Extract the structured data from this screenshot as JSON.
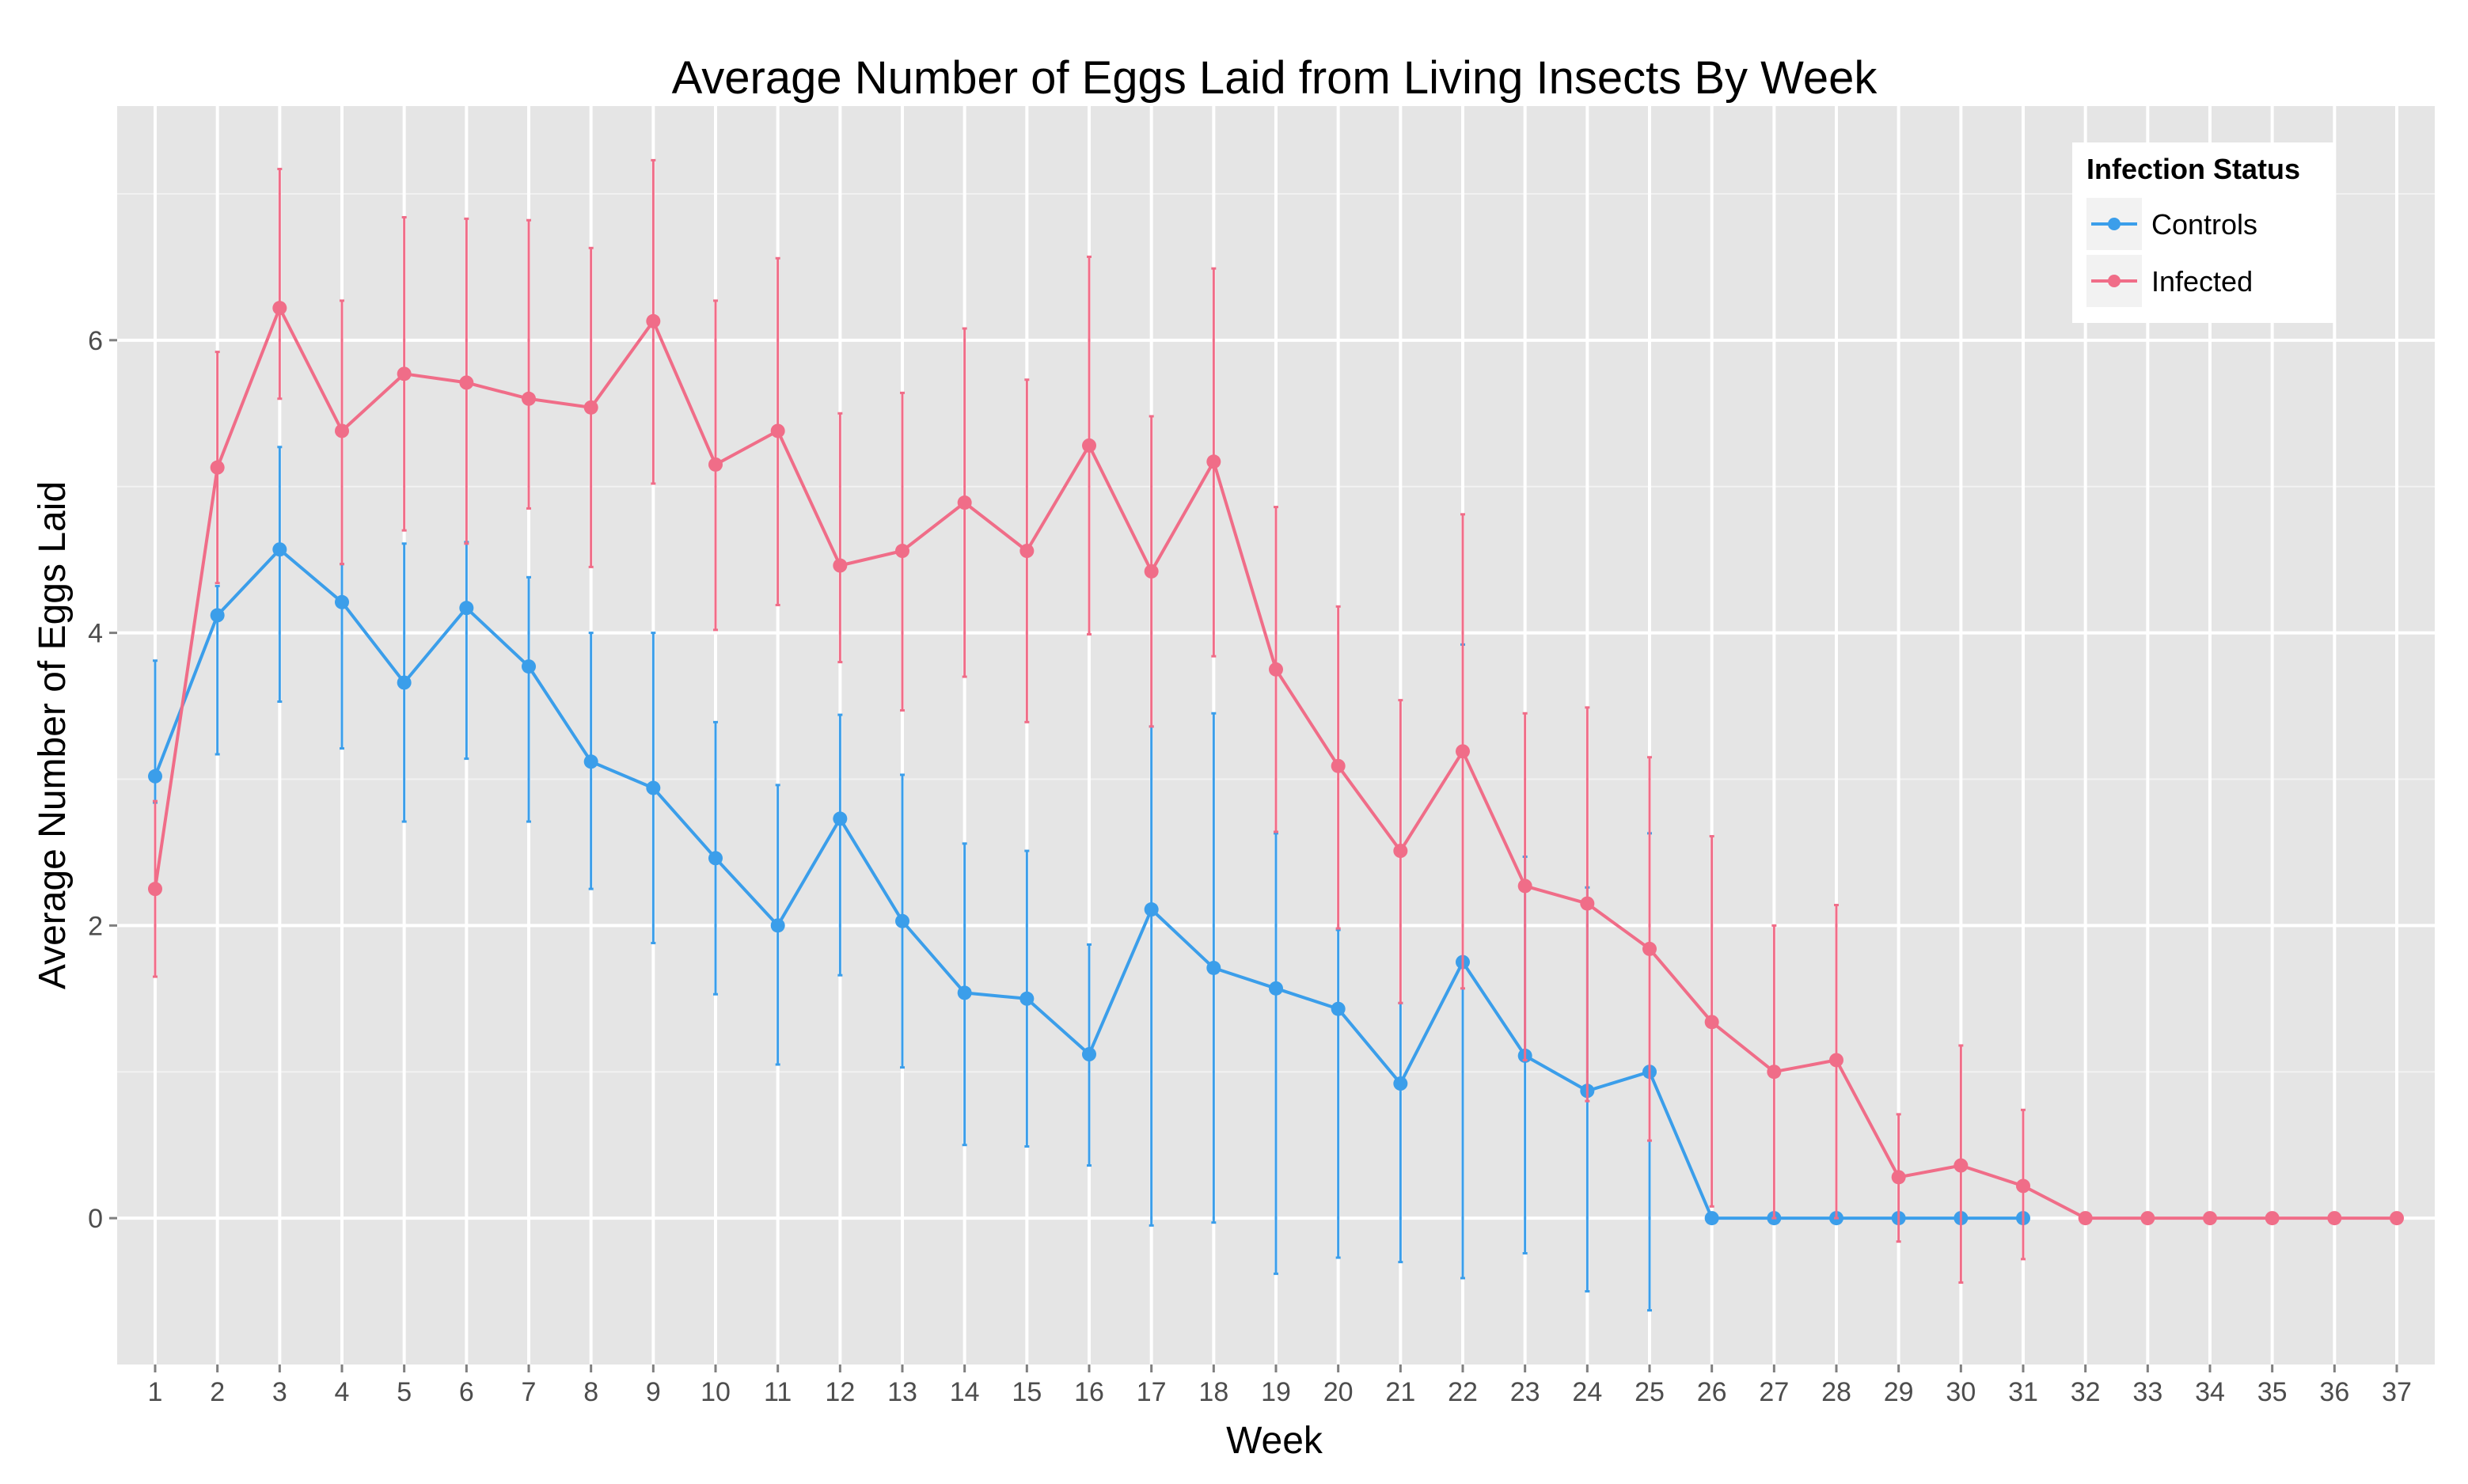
{
  "chart_data": {
    "type": "line",
    "title": "Average Number of Eggs Laid from Living Insects By Week",
    "xlabel": "Week",
    "ylabel": "Average Number of Eggs Laid",
    "x": [
      1,
      2,
      3,
      4,
      5,
      6,
      7,
      8,
      9,
      10,
      11,
      12,
      13,
      14,
      15,
      16,
      17,
      18,
      19,
      20,
      21,
      22,
      23,
      24,
      25,
      26,
      27,
      28,
      29,
      30,
      31,
      32,
      33,
      34,
      35,
      36,
      37
    ],
    "x_tick_labels": [
      "1",
      "2",
      "3",
      "4",
      "5",
      "6",
      "7",
      "8",
      "9",
      "10",
      "11",
      "12",
      "13",
      "14",
      "15",
      "16",
      "17",
      "18",
      "19",
      "20",
      "21",
      "22",
      "23",
      "24",
      "25",
      "26",
      "27",
      "28",
      "29",
      "30",
      "31",
      "32",
      "33",
      "34",
      "35",
      "36",
      "37"
    ],
    "ylim": [
      -1,
      7.6
    ],
    "y_ticks": [
      0,
      2,
      4,
      6
    ],
    "y_tick_labels": [
      "0",
      "2",
      "4",
      "6"
    ],
    "grid": true,
    "error_bars": true,
    "legend": {
      "title": "Infection Status",
      "placement": "top-right"
    },
    "series": [
      {
        "name": "Controls",
        "color": "#3b9eea",
        "x": [
          1,
          2,
          3,
          4,
          5,
          6,
          7,
          8,
          9,
          10,
          11,
          12,
          13,
          14,
          15,
          16,
          17,
          18,
          19,
          20,
          21,
          22,
          23,
          24,
          25,
          26,
          27,
          28,
          29,
          30,
          31
        ],
        "values": [
          3.02,
          4.12,
          4.57,
          4.21,
          3.66,
          4.17,
          3.77,
          3.12,
          2.94,
          2.46,
          2.0,
          2.73,
          2.03,
          1.54,
          1.5,
          1.12,
          2.11,
          1.71,
          1.57,
          1.43,
          0.92,
          1.75,
          1.11,
          0.87,
          1.0,
          0,
          0,
          0,
          0,
          0,
          0
        ],
        "err_low": [
          2.84,
          3.17,
          3.53,
          3.21,
          2.71,
          3.14,
          2.71,
          2.25,
          1.88,
          1.53,
          1.05,
          1.66,
          1.03,
          0.5,
          0.49,
          0.36,
          -0.05,
          -0.03,
          -0.38,
          -0.27,
          -0.3,
          -0.41,
          -0.24,
          -0.5,
          -0.63,
          0,
          0,
          0,
          0,
          0,
          0
        ],
        "err_high": [
          3.81,
          4.32,
          5.27,
          4.47,
          4.61,
          4.62,
          4.38,
          4.0,
          4.0,
          3.39,
          2.96,
          3.44,
          3.03,
          2.56,
          2.51,
          1.87,
          3.36,
          3.45,
          2.63,
          1.97,
          1.47,
          3.92,
          2.47,
          2.26,
          2.63,
          0,
          0,
          0,
          0,
          0,
          0
        ]
      },
      {
        "name": "Infected",
        "color": "#f06d88",
        "x": [
          1,
          2,
          3,
          4,
          5,
          6,
          7,
          8,
          9,
          10,
          11,
          12,
          13,
          14,
          15,
          16,
          17,
          18,
          19,
          20,
          21,
          22,
          23,
          24,
          25,
          26,
          27,
          28,
          29,
          30,
          31,
          32,
          33,
          34,
          35,
          36,
          37
        ],
        "values": [
          2.25,
          5.13,
          6.22,
          5.38,
          5.77,
          5.71,
          5.6,
          5.54,
          6.13,
          5.15,
          5.38,
          4.46,
          4.56,
          4.89,
          4.56,
          5.28,
          4.42,
          5.17,
          3.75,
          3.09,
          2.51,
          3.19,
          2.27,
          2.15,
          1.84,
          1.34,
          1.0,
          1.08,
          0.28,
          0.36,
          0.22,
          0,
          0,
          0,
          0,
          0,
          0
        ],
        "err_low": [
          1.65,
          4.34,
          5.6,
          4.47,
          4.7,
          4.61,
          4.85,
          4.45,
          5.02,
          4.02,
          4.19,
          3.8,
          3.47,
          3.7,
          3.39,
          3.99,
          3.36,
          3.84,
          2.64,
          1.98,
          1.47,
          1.57,
          1.08,
          0.8,
          0.53,
          0.08,
          0,
          0,
          -0.16,
          -0.44,
          -0.28,
          0,
          0,
          0,
          0,
          0,
          0
        ],
        "err_high": [
          2.85,
          5.92,
          7.17,
          6.27,
          6.84,
          6.83,
          6.82,
          6.63,
          7.23,
          6.27,
          6.56,
          5.5,
          5.64,
          6.08,
          5.73,
          6.57,
          5.48,
          6.49,
          4.86,
          4.18,
          3.54,
          4.81,
          3.45,
          3.49,
          3.15,
          2.61,
          2.0,
          2.14,
          0.71,
          1.18,
          0.74,
          0,
          0,
          0,
          0,
          0,
          0
        ]
      }
    ]
  }
}
